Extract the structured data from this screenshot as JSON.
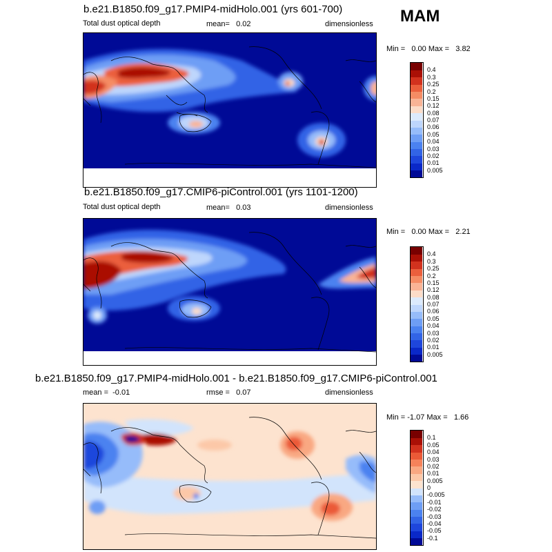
{
  "season": "MAM",
  "panels": [
    {
      "title": "b.e21.B1850.f09_g17.PMIP4-midHolo.001 (yrs 601-700)",
      "left": "Total dust optical depth",
      "center": "mean=   0.02",
      "right": "dimensionless",
      "minmax": "Min =   0.00 Max =   3.82"
    },
    {
      "title": "b.e21.B1850.f09_g17.CMIP6-piControl.001 (yrs 1101-1200)",
      "left": "Total dust optical depth",
      "center": "mean=   0.03",
      "right": "dimensionless",
      "minmax": "Min =   0.00 Max =   2.21"
    },
    {
      "title": "b.e21.B1850.f09_g17.PMIP4-midHolo.001 - b.e21.B1850.f09_g17.CMIP6-piControl.001",
      "left": "mean =  -0.01",
      "center": "rmse =   0.07",
      "right": "dimensionless",
      "minmax": "Min = -1.07 Max =   1.66"
    }
  ],
  "chart_data": [
    {
      "type": "heatmap",
      "title": "b.e21.B1850.f09_g17.PMIP4-midHolo.001 (yrs 601-700)",
      "variable": "Total dust optical depth",
      "units": "dimensionless",
      "mean": 0.02,
      "min": 0.0,
      "max": 3.82,
      "levels": [
        0.005,
        0.01,
        0.02,
        0.03,
        0.04,
        0.05,
        0.06,
        0.07,
        0.08,
        0.12,
        0.15,
        0.2,
        0.25,
        0.3,
        0.4
      ],
      "level_labels": [
        "0.005",
        "0.01",
        "0.02",
        "0.03",
        "0.04",
        "0.05",
        "0.06",
        "0.07",
        "0.08",
        "0.12",
        "0.15",
        "0.2",
        "0.25",
        "0.3",
        "0.4"
      ],
      "colors": [
        "#000a96",
        "#0a28c8",
        "#1e46dc",
        "#3264e6",
        "#4b82f0",
        "#6e9ef5",
        "#96bcfa",
        "#bed6fc",
        "#dceafc",
        "#fcdcc8",
        "#f9b496",
        "#f58c64",
        "#eb5f3c",
        "#d2321e",
        "#aa1006",
        "#780000"
      ],
      "background_color": "#000a96"
    },
    {
      "type": "heatmap",
      "title": "b.e21.B1850.f09_g17.CMIP6-piControl.001 (yrs 1101-1200)",
      "variable": "Total dust optical depth",
      "units": "dimensionless",
      "mean": 0.03,
      "min": 0.0,
      "max": 2.21,
      "levels": [
        0.005,
        0.01,
        0.02,
        0.03,
        0.04,
        0.05,
        0.06,
        0.07,
        0.08,
        0.12,
        0.15,
        0.2,
        0.25,
        0.3,
        0.4
      ],
      "level_labels": [
        "0.005",
        "0.01",
        "0.02",
        "0.03",
        "0.04",
        "0.05",
        "0.06",
        "0.07",
        "0.08",
        "0.12",
        "0.15",
        "0.2",
        "0.25",
        "0.3",
        "0.4"
      ],
      "colors": [
        "#000a96",
        "#0a28c8",
        "#1e46dc",
        "#3264e6",
        "#4b82f0",
        "#6e9ef5",
        "#96bcfa",
        "#bed6fc",
        "#dceafc",
        "#fcdcc8",
        "#f9b496",
        "#f58c64",
        "#eb5f3c",
        "#d2321e",
        "#aa1006",
        "#780000"
      ],
      "background_color": "#000a96"
    },
    {
      "type": "heatmap",
      "title": "b.e21.B1850.f09_g17.PMIP4-midHolo.001 - b.e21.B1850.f09_g17.CMIP6-piControl.001",
      "units": "dimensionless",
      "mean": -0.01,
      "rmse": 0.07,
      "min": -1.07,
      "max": 1.66,
      "levels": [
        -0.1,
        -0.05,
        -0.04,
        -0.03,
        -0.02,
        -0.01,
        -0.005,
        0,
        0.005,
        0.01,
        0.02,
        0.03,
        0.04,
        0.05,
        0.1
      ],
      "level_labels": [
        "-0.1",
        "-0.05",
        "-0.04",
        "-0.03",
        "-0.02",
        "-0.01",
        "-0.005",
        "0",
        "0.005",
        "0.01",
        "0.02",
        "0.03",
        "0.04",
        "0.05",
        "0.1"
      ],
      "colors": [
        "#000a96",
        "#0a28c8",
        "#1e46dc",
        "#3264e6",
        "#4b82f0",
        "#6e9ef5",
        "#96bcfa",
        "#d2e4fc",
        "#fde3cf",
        "#fcc8a8",
        "#f9a882",
        "#f5825a",
        "#eb5a37",
        "#d2321e",
        "#aa1006",
        "#780000"
      ],
      "background_color": "#fde3cf"
    }
  ]
}
